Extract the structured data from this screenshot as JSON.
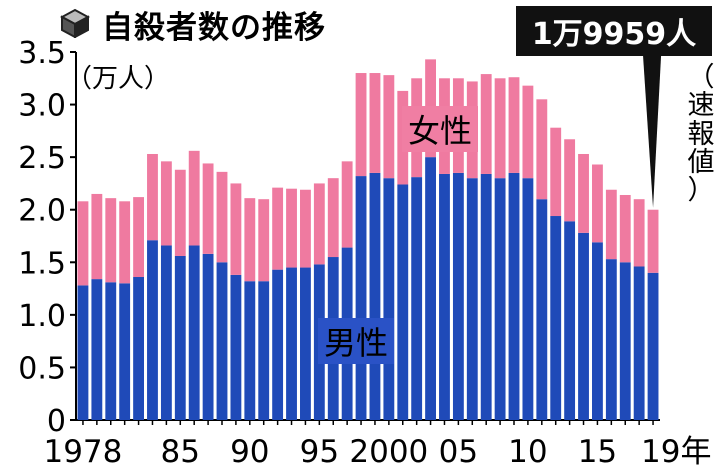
{
  "title": "自殺者数の推移",
  "unit": "（万人）",
  "callout": "1万9959人",
  "note": [
    "（",
    "速",
    "報",
    "値",
    "）"
  ],
  "chart_data": {
    "type": "bar",
    "stacked": true,
    "x": [
      1978,
      1979,
      1980,
      1981,
      1982,
      1983,
      1984,
      1985,
      1986,
      1987,
      1988,
      1989,
      1990,
      1991,
      1992,
      1993,
      1994,
      1995,
      1996,
      1997,
      1998,
      1999,
      2000,
      2001,
      2002,
      2003,
      2004,
      2005,
      2006,
      2007,
      2008,
      2009,
      2010,
      2011,
      2012,
      2013,
      2014,
      2015,
      2016,
      2017,
      2018,
      2019
    ],
    "x_tick_labels": [
      {
        "x": 1978,
        "label": "1978"
      },
      {
        "x": 1985,
        "label": "85"
      },
      {
        "x": 1990,
        "label": "90"
      },
      {
        "x": 1995,
        "label": "95"
      },
      {
        "x": 2000,
        "label": "2000"
      },
      {
        "x": 2005,
        "label": "05"
      },
      {
        "x": 2010,
        "label": "10"
      },
      {
        "x": 2015,
        "label": "15"
      },
      {
        "x": 2019,
        "label": "19年"
      }
    ],
    "ylim": [
      0,
      3.5
    ],
    "y_ticks": [
      "0",
      "0.5",
      "1.0",
      "1.5",
      "2.0",
      "2.5",
      "3.0",
      "3.5"
    ],
    "grid": false,
    "series": [
      {
        "name": "男性",
        "color": "#1f4ab8",
        "values": [
          1.28,
          1.34,
          1.31,
          1.3,
          1.36,
          1.71,
          1.66,
          1.56,
          1.66,
          1.58,
          1.5,
          1.38,
          1.32,
          1.32,
          1.43,
          1.45,
          1.45,
          1.48,
          1.55,
          1.64,
          2.32,
          2.35,
          2.3,
          2.24,
          2.31,
          2.5,
          2.34,
          2.35,
          2.3,
          2.34,
          2.3,
          2.35,
          2.3,
          2.1,
          1.94,
          1.89,
          1.78,
          1.69,
          1.53,
          1.5,
          1.46,
          1.4
        ]
      },
      {
        "name": "女性",
        "color": "#ef7aa0",
        "values": [
          0.8,
          0.81,
          0.8,
          0.78,
          0.76,
          0.82,
          0.8,
          0.82,
          0.9,
          0.86,
          0.86,
          0.87,
          0.79,
          0.78,
          0.78,
          0.75,
          0.74,
          0.77,
          0.75,
          0.82,
          0.98,
          0.95,
          0.98,
          0.89,
          0.94,
          0.93,
          0.91,
          0.9,
          0.92,
          0.95,
          0.95,
          0.91,
          0.88,
          0.95,
          0.84,
          0.78,
          0.75,
          0.74,
          0.66,
          0.64,
          0.64,
          0.6
        ]
      }
    ]
  }
}
